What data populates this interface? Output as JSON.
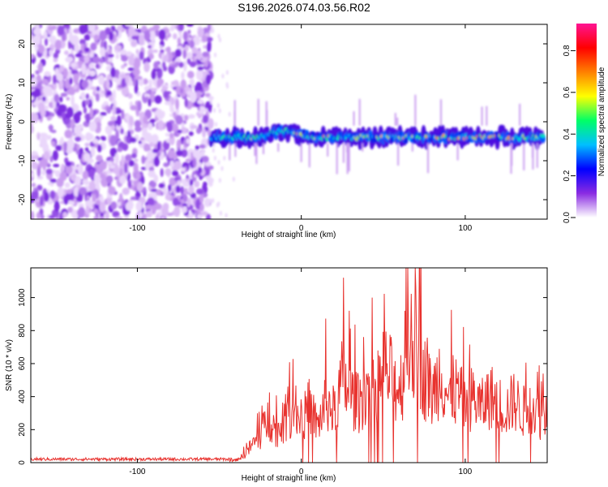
{
  "title": "S196.2026.074.03.56.R02",
  "chart_data": [
    {
      "type": "heatmap",
      "xlabel": "Height of straight line (km)",
      "ylabel": "Frequency (Hz)",
      "xlim": [
        -165,
        150
      ],
      "ylim": [
        -25,
        25
      ],
      "xticks": [
        -100,
        0,
        100
      ],
      "yticks": [
        -20,
        -10,
        0,
        10,
        20
      ],
      "noise_region_x": [
        -165,
        -55
      ],
      "signal_band_center_hz": -4,
      "signal_band_width_hz": 3,
      "colorbar": {
        "label": "Normalized spectral amplitude",
        "range": [
          0,
          0.93
        ],
        "ticks": [
          "0.0",
          "0.2",
          "0.4",
          "0.6",
          "0.8"
        ],
        "colors": [
          "#ffffff",
          "#8a2be2",
          "#0000ff",
          "#00bfff",
          "#00ff66",
          "#ffff00",
          "#ff8000",
          "#ff0000",
          "#ff1493"
        ]
      }
    },
    {
      "type": "line",
      "xlabel": "Height of straight line (km)",
      "ylabel": "SNR (10 * v/v)",
      "xlim": [
        -165,
        150
      ],
      "ylim": [
        0,
        1180
      ],
      "xticks": [
        -100,
        0,
        100
      ],
      "yticks": [
        0,
        200,
        400,
        600,
        800,
        1000
      ],
      "color": "#e8322e",
      "series": [
        {
          "name": "SNR",
          "x": [
            -165,
            -150,
            -135,
            -120,
            -105,
            -90,
            -75,
            -60,
            -50,
            -40,
            -35,
            -30,
            -25,
            -20,
            -15,
            -10,
            -5,
            0,
            5,
            10,
            15,
            20,
            25,
            30,
            35,
            40,
            45,
            50,
            55,
            60,
            65,
            70,
            75,
            80,
            85,
            90,
            95,
            100,
            105,
            110,
            115,
            120,
            125,
            130,
            135,
            140,
            145,
            150
          ],
          "values": [
            20,
            22,
            18,
            21,
            19,
            20,
            22,
            18,
            15,
            20,
            60,
            150,
            220,
            380,
            260,
            330,
            450,
            330,
            480,
            300,
            520,
            420,
            700,
            560,
            480,
            650,
            560,
            780,
            700,
            620,
            860,
            1000,
            720,
            560,
            780,
            520,
            600,
            480,
            550,
            460,
            560,
            500,
            440,
            520,
            420,
            500,
            380,
            420
          ]
        }
      ]
    }
  ]
}
